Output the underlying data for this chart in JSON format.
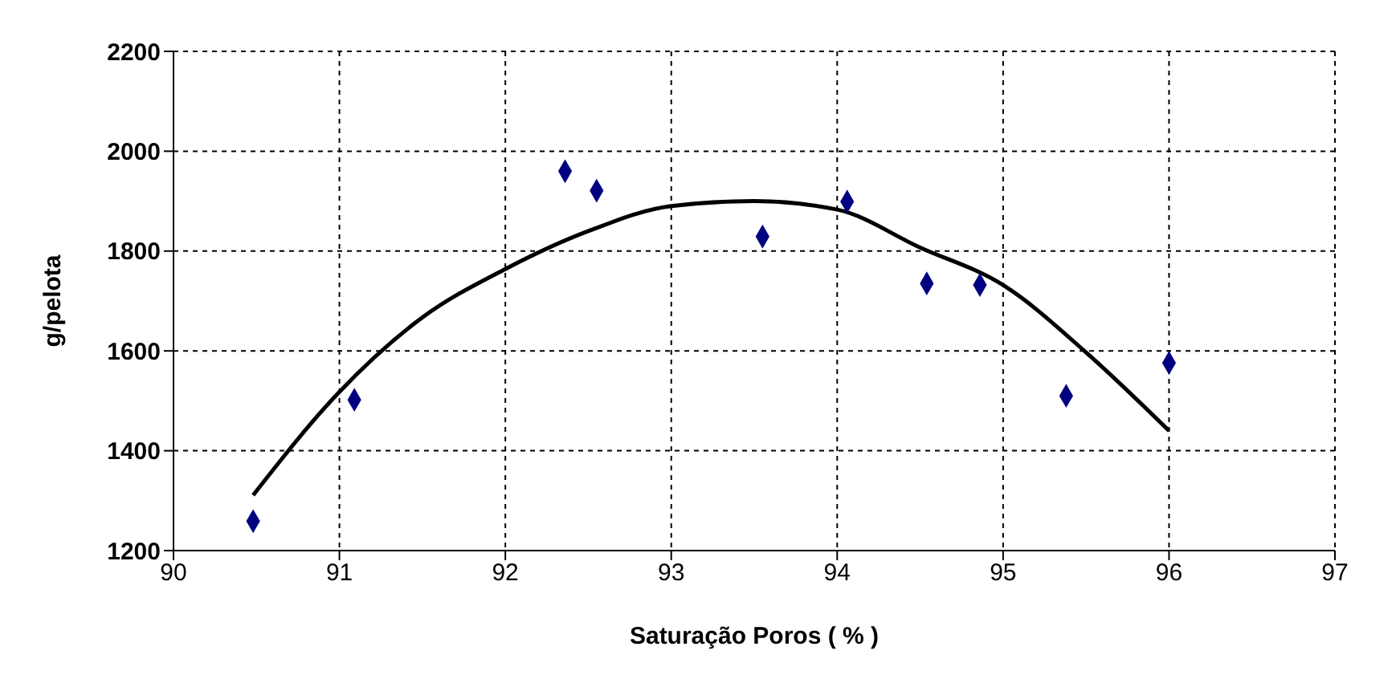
{
  "chart_data": {
    "type": "scatter",
    "xlabel": "Saturação Poros ( % )",
    "ylabel": "g/pelota",
    "xlim": [
      90,
      97
    ],
    "xticks": [
      90,
      91,
      92,
      93,
      94,
      95,
      96,
      97
    ],
    "ylim": [
      1200,
      2200
    ],
    "yticks": [
      1200,
      1400,
      1600,
      1800,
      2000,
      2200
    ],
    "grid": true,
    "marker": "diamond",
    "series": [
      {
        "color": "#000080",
        "x": [
          90.48,
          91.09,
          92.36,
          92.55,
          93.55,
          94.06,
          94.54,
          94.86,
          95.38,
          96.0
        ],
        "values": [
          1259,
          1502,
          1960,
          1921,
          1829,
          1899,
          1735,
          1732,
          1510,
          1576
        ]
      },
      {
        "type": "line",
        "color": "#000000",
        "marker": "none",
        "line_style": "solid",
        "x": [
          90.48,
          91,
          91.5,
          92,
          92.5,
          93,
          93.5,
          94,
          94.5,
          95,
          95.5,
          96
        ],
        "values": [
          1311,
          1518,
          1667,
          1764,
          1840,
          1890,
          1900,
          1883,
          1807,
          1732,
          1597,
          1440
        ]
      }
    ]
  }
}
